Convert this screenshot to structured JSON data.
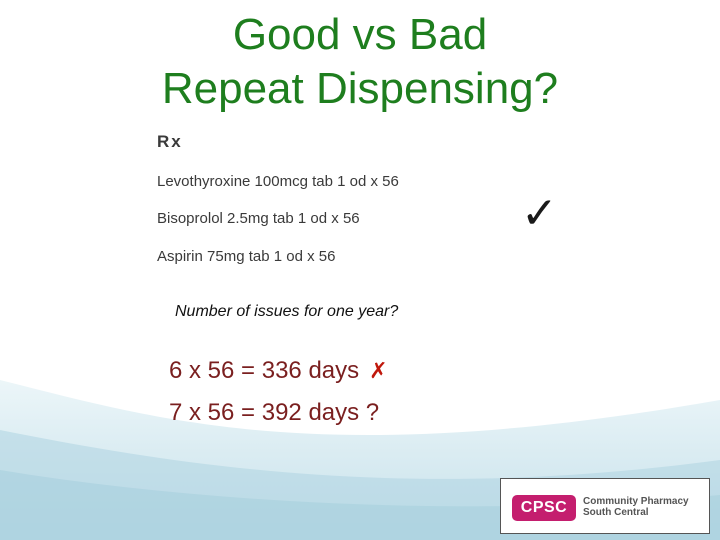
{
  "slide": {
    "title_line1": "Good vs Bad",
    "title_line2": "Repeat Dispensing?",
    "rx_label": "Rx",
    "medications": [
      "Levothyroxine 100mcg tab 1 od x 56",
      "Bisoprolol 2.5mg tab 1 od x 56",
      "Aspirin 75mg tab 1 od x 56"
    ],
    "tick_mark": "✓",
    "question": "Number of issues for one year?",
    "calc1": "6 x 56 = 336 days",
    "calc1_mark": "✗",
    "calc2": "7 x 56 = 392 days ?"
  },
  "logo": {
    "badge": "CPSC",
    "line1": "Community Pharmacy",
    "line2": "South Central"
  },
  "colors": {
    "title": "#1e7e1e",
    "calc_text": "#7a1f1f",
    "cross": "#c0180c",
    "badge": "#c41e6e",
    "wave": "#cfe7ef"
  }
}
